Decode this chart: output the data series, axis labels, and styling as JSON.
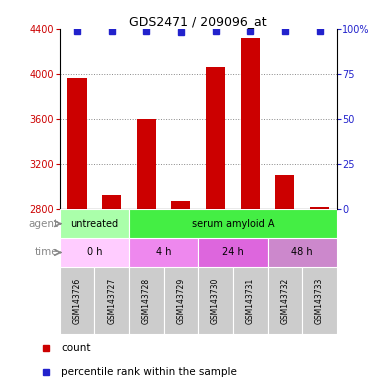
{
  "title": "GDS2471 / 209096_at",
  "samples": [
    "GSM143726",
    "GSM143727",
    "GSM143728",
    "GSM143729",
    "GSM143730",
    "GSM143731",
    "GSM143732",
    "GSM143733"
  ],
  "counts": [
    3960,
    2930,
    3600,
    2870,
    4060,
    4320,
    3100,
    2820
  ],
  "percentile_ranks": [
    99,
    99,
    99,
    98,
    99,
    99,
    99,
    99
  ],
  "ylim_left": [
    2800,
    4400
  ],
  "yticks_left": [
    2800,
    3200,
    3600,
    4000,
    4400
  ],
  "ylim_right": [
    0,
    100
  ],
  "yticks_right": [
    0,
    25,
    50,
    75,
    100
  ],
  "bar_color": "#cc0000",
  "dot_color": "#2222cc",
  "agent_groups": [
    {
      "label": "untreated",
      "start": 0,
      "end": 2,
      "color": "#aaffaa"
    },
    {
      "label": "serum amyloid A",
      "start": 2,
      "end": 8,
      "color": "#44ee44"
    }
  ],
  "time_groups": [
    {
      "label": "0 h",
      "start": 0,
      "end": 2,
      "color": "#ffccff"
    },
    {
      "label": "4 h",
      "start": 2,
      "end": 4,
      "color": "#ee88ee"
    },
    {
      "label": "24 h",
      "start": 4,
      "end": 6,
      "color": "#dd66dd"
    },
    {
      "label": "48 h",
      "start": 6,
      "end": 8,
      "color": "#cc88cc"
    }
  ],
  "grid_color": "#888888",
  "background_color": "#ffffff",
  "tick_label_color_left": "#cc0000",
  "tick_label_color_right": "#2222cc",
  "sample_box_color": "#cccccc",
  "label_color": "#888888"
}
